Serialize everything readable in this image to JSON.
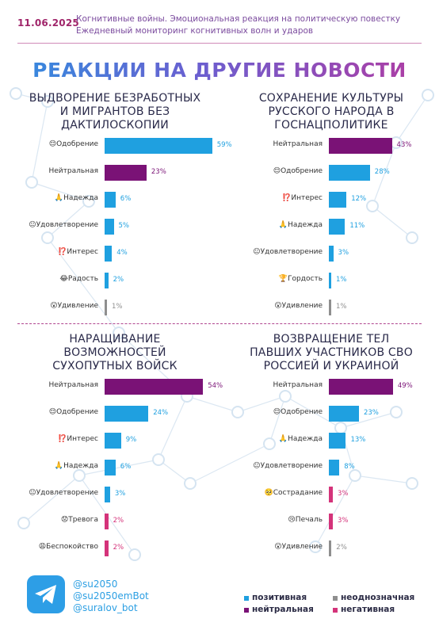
{
  "header": {
    "date": "11.06.2025",
    "line1": "Когнитивные войны. Эмоциональная реакция на политическую повестку",
    "line2": "Ежедневный мониторинг когнитивных волн и ударов"
  },
  "main_title": "РЕАКЦИИ НА ДРУГИЕ НОВОСТИ",
  "colors": {
    "positive": "#1fa0e0",
    "neutral": "#7a1276",
    "ambiguous": "#8f8f8f",
    "negative": "#d4337a"
  },
  "chart_data": [
    {
      "type": "bar",
      "title": "ВЫДВОРЕНИЕ БЕЗРАБОТНЫХ И МИГРАНТОВ БЕЗ ДАКТИЛОСКОПИИ",
      "categories": [
        "Одобрение",
        "Нейтральная",
        "Надежда",
        "Удовлетворение",
        "Интерес",
        "Радость",
        "Удивление"
      ],
      "emoji": [
        "😌",
        "",
        "🙏",
        "😐",
        "⁉️",
        "😂",
        "😮"
      ],
      "values": [
        59,
        23,
        6,
        5,
        4,
        2,
        1
      ],
      "sentiment": [
        "positive",
        "neutral",
        "positive",
        "positive",
        "positive",
        "positive",
        "ambiguous"
      ],
      "value_labels": [
        "59%",
        "23%",
        "6%",
        "5%",
        "4%",
        "2%",
        "1%"
      ]
    },
    {
      "type": "bar",
      "title": "СОХРАНЕНИЕ КУЛЬТУРЫ РУССКОГО НАРОДА В ГОСНАЦПОЛИТИКЕ",
      "categories": [
        "Нейтральная",
        "Одобрение",
        "Интерес",
        "Надежда",
        "Удовлетворение",
        "Гордость",
        "Удивление"
      ],
      "emoji": [
        "",
        "😌",
        "⁉️",
        "🙏",
        "😐",
        "🏆",
        "😮"
      ],
      "values": [
        43,
        28,
        12,
        11,
        3,
        1,
        1
      ],
      "sentiment": [
        "neutral",
        "positive",
        "positive",
        "positive",
        "positive",
        "positive",
        "ambiguous"
      ],
      "value_labels": [
        "43%",
        "28%",
        "12%",
        "11%",
        "3%",
        "1%",
        "1%"
      ]
    },
    {
      "type": "bar",
      "title": "НАРАЩИВАНИЕ ВОЗМОЖНОСТЕЙ СУХОПУТНЫХ ВОЙСК",
      "categories": [
        "Нейтральная",
        "Одобрение",
        "Интерес",
        "Надежда",
        "Удовлетворение",
        "Тревога",
        "Беспокойство"
      ],
      "emoji": [
        "",
        "😌",
        "⁉️",
        "🙏",
        "😐",
        "😟",
        "😩"
      ],
      "values": [
        54,
        24,
        9,
        6,
        3,
        2,
        2
      ],
      "sentiment": [
        "neutral",
        "positive",
        "positive",
        "positive",
        "positive",
        "negative",
        "negative"
      ],
      "value_labels": [
        "54%",
        "24%",
        "9%",
        "6%",
        "3%",
        "2%",
        "2%"
      ]
    },
    {
      "type": "bar",
      "title": "ВОЗВРАЩЕНИЕ ТЕЛ ПАВШИХ УЧАСТНИКОВ СВО РОССИЕЙ И УКРАИНОЙ",
      "categories": [
        "Нейтральная",
        "Одобрение",
        "Надежда",
        "Удовлетворение",
        "Сострадание",
        "Печаль",
        "Удивление"
      ],
      "emoji": [
        "",
        "😌",
        "🙏",
        "😐",
        "🥺",
        "😢",
        "😮"
      ],
      "values": [
        49,
        23,
        13,
        8,
        3,
        3,
        2
      ],
      "sentiment": [
        "neutral",
        "positive",
        "positive",
        "positive",
        "negative",
        "negative",
        "ambiguous"
      ],
      "value_labels": [
        "49%",
        "23%",
        "13%",
        "8%",
        "3%",
        "3%",
        "2%"
      ]
    }
  ],
  "footer": {
    "handles": [
      "@su2050",
      "@su2050emBot",
      "@suralov_bot"
    ],
    "legend": [
      {
        "key": "positive",
        "label": "позитивная"
      },
      {
        "key": "ambiguous",
        "label": "неоднозначная"
      },
      {
        "key": "neutral",
        "label": "нейтральная"
      },
      {
        "key": "negative",
        "label": "негативная"
      }
    ]
  }
}
